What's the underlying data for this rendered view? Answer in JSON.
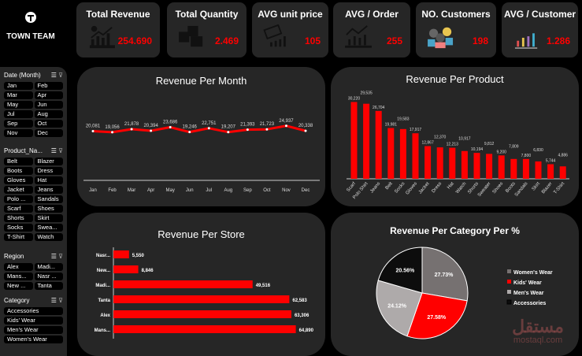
{
  "logo": {
    "text": "TOWN TEAM"
  },
  "kpis": [
    {
      "title": "Total Revenue",
      "value": "254.690",
      "icon": "revenue-growth-icon"
    },
    {
      "title": "Total Quantity",
      "value": "2.469",
      "icon": "boxes-icon"
    },
    {
      "title": "AVG unit price",
      "value": "105",
      "icon": "price-tag-chart-icon"
    },
    {
      "title": "AVG / Order",
      "value": "255",
      "icon": "line-bar-chart-icon"
    },
    {
      "title": "NO. Customers",
      "value": "198",
      "icon": "customers-group-icon"
    },
    {
      "title": "AVG / Customer",
      "value": "1.286",
      "icon": "colored-bars-icon"
    }
  ],
  "slicers": {
    "month": {
      "title": "Date (Month)",
      "items": [
        "Jan",
        "Feb",
        "Mar",
        "Apr",
        "May",
        "Jun",
        "Jul",
        "Aug",
        "Sep",
        "Oct",
        "Nov",
        "Dec"
      ]
    },
    "product": {
      "title": "Product_Na...",
      "items": [
        "Belt",
        "Blazer",
        "Boots",
        "Dress",
        "Gloves",
        "Hat",
        "Jacket",
        "Jeans",
        "Polo ...",
        "Sandals",
        "Scarf",
        "Shoes",
        "Shorts",
        "Skirt",
        "Socks",
        "Swea...",
        "T-Shirt",
        "Watch"
      ]
    },
    "region": {
      "title": "Region",
      "items": [
        "Alex",
        "Madi...",
        "Mans...",
        "Nasr ...",
        "New ...",
        "Tanta"
      ]
    },
    "category": {
      "title": "Category",
      "items": [
        "Accessories",
        "Kids' Wear",
        "Men's Wear",
        "Women's Wear"
      ]
    }
  },
  "watermark": {
    "arabic": "مستقل",
    "latin": "mostaql.com"
  },
  "chart_data": [
    {
      "type": "line",
      "title": "Revenue Per Month",
      "categories": [
        "Jan",
        "Feb",
        "Mar",
        "Apr",
        "May",
        "Jun",
        "Jul",
        "Aug",
        "Sep",
        "Oct",
        "Nov",
        "Dec"
      ],
      "values": [
        20081,
        19056,
        21878,
        20394,
        23686,
        19246,
        22751,
        19207,
        21393,
        21723,
        24937,
        20338
      ],
      "labels": [
        "20,081",
        "19,056",
        "21,878",
        "20,394",
        "23,686",
        "19,246",
        "22,751",
        "19,207",
        "21,393",
        "21,723",
        "24,937",
        "20,338"
      ],
      "color": "#ff0000",
      "grid": false
    },
    {
      "type": "bar",
      "title": "Revenue Per Product",
      "categories": [
        "Scarf",
        "Polo Shirt",
        "Jeans",
        "Belt",
        "Socks",
        "Gloves",
        "Jacket",
        "Dress",
        "Hat",
        "Watch",
        "Shorts",
        "Sweater",
        "Shoes",
        "Boots",
        "Sandals",
        "Skirt",
        "Blazer",
        "T-Shirt"
      ],
      "values": [
        30220,
        29535,
        26704,
        19981,
        19583,
        17917,
        12867,
        12370,
        12213,
        10917,
        10194,
        9812,
        9200,
        7809,
        7800,
        6830,
        5744,
        4886
      ],
      "labels": [
        "30,220",
        "29,535",
        "26,704",
        "19,981",
        "19,583",
        "17,917",
        "12,867",
        "12,370",
        "12,213",
        "10,917",
        "10,194",
        "9,812",
        "9,200",
        "7,809",
        "7,800",
        "6,830",
        "5,744",
        "4,886"
      ],
      "color": "#ff0000",
      "grid": false
    },
    {
      "type": "bar",
      "orientation": "horizontal",
      "title": "Revenue Per Store",
      "categories": [
        "Nasr...",
        "New...",
        "Madi...",
        "Tanta",
        "Alex",
        "Mans..."
      ],
      "values": [
        5550,
        8846,
        49516,
        62583,
        63306,
        64890
      ],
      "labels": [
        "5,550",
        "8,846",
        "49,516",
        "62,583",
        "63,306",
        "64,890"
      ],
      "color": "#ff0000",
      "grid": false
    },
    {
      "type": "pie",
      "title": "Revenue Per Category Per %",
      "categories": [
        "Women's Wear",
        "Kids' Wear",
        "Men's Wear",
        "Accessories"
      ],
      "values": [
        27.73,
        27.58,
        24.12,
        20.56
      ],
      "labels": [
        "27.73%",
        "27.58%",
        "24.12%",
        "20.56%"
      ],
      "colors": [
        "#767171",
        "#ff0000",
        "#aeaaaa",
        "#0d0d0d"
      ],
      "legend": "right"
    }
  ]
}
